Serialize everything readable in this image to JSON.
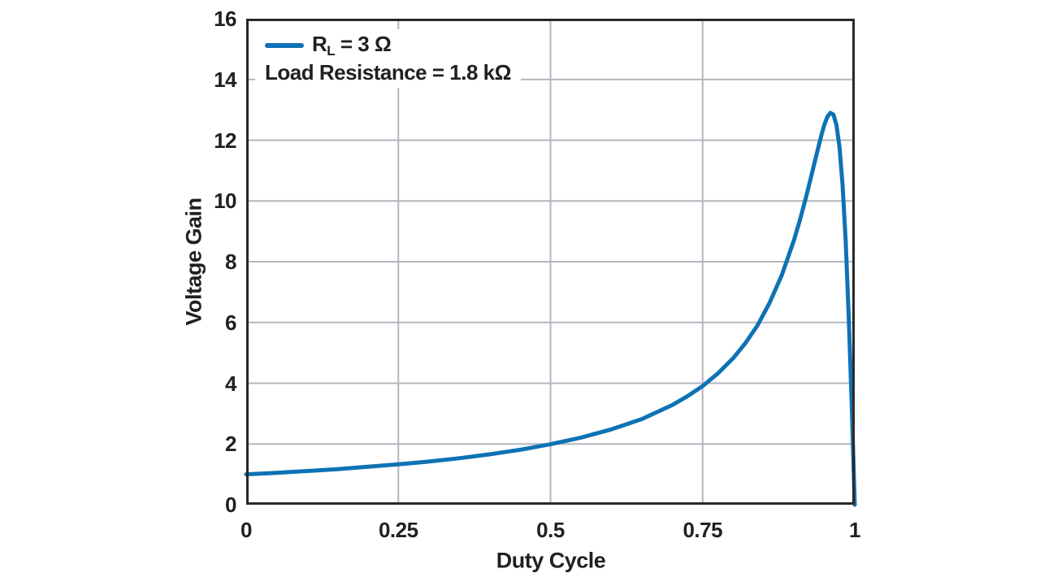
{
  "colors": {
    "curve": "#0e72b5",
    "grid": "#b3b6bf",
    "frame": "#2b2829",
    "text": "#231f20",
    "background": "#ffffff"
  },
  "legend": {
    "series_label": {
      "pre": "R",
      "sub": "L",
      "post": " = 3 Ω"
    },
    "note": "Load Resistance = 1.8 kΩ"
  },
  "chart_data": {
    "type": "line",
    "title": "",
    "xlabel": "Duty Cycle",
    "ylabel": "Voltage Gain",
    "xlim": [
      0,
      1
    ],
    "ylim": [
      0,
      16
    ],
    "grid_on": true,
    "grid": {
      "x": [
        0.25,
        0.5,
        0.75
      ],
      "y": [
        2,
        4,
        6,
        8,
        10,
        12,
        14
      ]
    },
    "xticks": {
      "values": [
        0,
        0.25,
        0.5,
        0.75,
        1
      ],
      "labels": [
        "0",
        "0.25",
        "0.5",
        "0.75",
        "1"
      ]
    },
    "yticks": {
      "values": [
        0,
        2,
        4,
        6,
        8,
        10,
        12,
        14,
        16
      ],
      "labels": [
        "0",
        "2",
        "4",
        "6",
        "8",
        "10",
        "12",
        "14",
        "16"
      ]
    },
    "legend_position": "top-left-inside",
    "legend_entries": [
      "RL = 3 Ω"
    ],
    "annotations": [
      "Load Resistance = 1.8 kΩ"
    ],
    "series": [
      {
        "name": "RL = 3 Ω",
        "color": "#0e72b5",
        "points": [
          [
            0,
            1.0
          ],
          [
            0.05,
            1.05
          ],
          [
            0.1,
            1.11
          ],
          [
            0.15,
            1.17
          ],
          [
            0.2,
            1.25
          ],
          [
            0.25,
            1.33
          ],
          [
            0.3,
            1.42
          ],
          [
            0.35,
            1.53
          ],
          [
            0.4,
            1.66
          ],
          [
            0.45,
            1.81
          ],
          [
            0.5,
            1.99
          ],
          [
            0.55,
            2.21
          ],
          [
            0.6,
            2.48
          ],
          [
            0.65,
            2.82
          ],
          [
            0.7,
            3.28
          ],
          [
            0.725,
            3.57
          ],
          [
            0.75,
            3.91
          ],
          [
            0.775,
            4.32
          ],
          [
            0.8,
            4.82
          ],
          [
            0.82,
            5.31
          ],
          [
            0.84,
            5.9
          ],
          [
            0.86,
            6.64
          ],
          [
            0.88,
            7.55
          ],
          [
            0.9,
            8.7
          ],
          [
            0.91,
            9.38
          ],
          [
            0.92,
            10.13
          ],
          [
            0.93,
            10.94
          ],
          [
            0.94,
            11.76
          ],
          [
            0.945,
            12.15
          ],
          [
            0.95,
            12.5
          ],
          [
            0.955,
            12.77
          ],
          [
            0.96,
            12.9
          ],
          [
            0.965,
            12.84
          ],
          [
            0.97,
            12.5
          ],
          [
            0.975,
            11.76
          ],
          [
            0.98,
            10.53
          ],
          [
            0.985,
            8.7
          ],
          [
            0.99,
            6.25
          ],
          [
            0.995,
            3.28
          ],
          [
            1.0,
            0.0
          ]
        ]
      }
    ]
  }
}
